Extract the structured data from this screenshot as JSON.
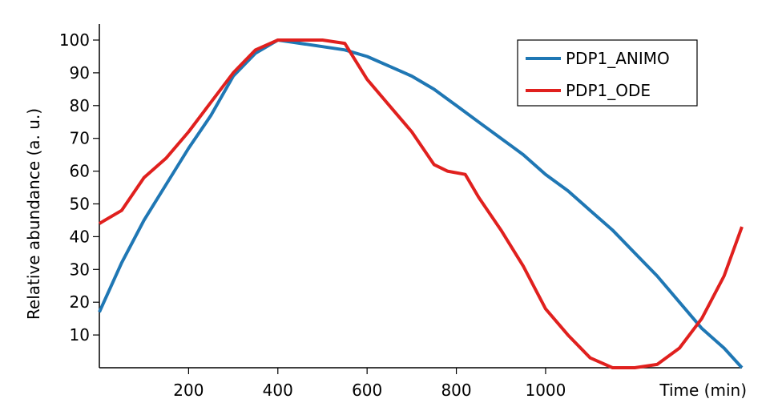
{
  "chart_data": {
    "type": "line",
    "x_label": "Time (min)",
    "y_label": "Relative abundance (a. u.)",
    "xlim": [
      0,
      1440
    ],
    "ylim": [
      0,
      100
    ],
    "xticks": [
      200,
      400,
      600,
      800,
      1000
    ],
    "yticks": [
      10,
      20,
      30,
      40,
      50,
      60,
      70,
      80,
      90,
      100
    ],
    "legend": "upper right",
    "series": [
      {
        "name": "PDP1_ANIMO",
        "color": "#1f77b4",
        "x": [
          0,
          50,
          100,
          150,
          200,
          250,
          300,
          350,
          400,
          500,
          550,
          600,
          650,
          700,
          750,
          800,
          850,
          900,
          950,
          1000,
          1050,
          1100,
          1150,
          1200,
          1250,
          1300,
          1350,
          1400,
          1440
        ],
        "values": [
          17,
          32,
          45,
          56,
          67,
          77,
          89,
          96,
          100,
          98,
          97,
          95,
          92,
          89,
          85,
          80,
          75,
          70,
          65,
          59,
          54,
          48,
          42,
          35,
          28,
          20,
          12,
          6,
          0
        ]
      },
      {
        "name": "PDP1_ODE",
        "color": "#e0201e",
        "x": [
          0,
          50,
          100,
          150,
          200,
          250,
          300,
          350,
          400,
          500,
          550,
          600,
          650,
          700,
          750,
          780,
          820,
          850,
          900,
          950,
          1000,
          1050,
          1100,
          1150,
          1200,
          1250,
          1300,
          1350,
          1400,
          1440
        ],
        "values": [
          44,
          48,
          58,
          64,
          72,
          81,
          90,
          97,
          100,
          100,
          99,
          88,
          80,
          72,
          62,
          60,
          59,
          52,
          42,
          31,
          18,
          10,
          3,
          0,
          0,
          1,
          6,
          15,
          28,
          43
        ]
      }
    ]
  }
}
